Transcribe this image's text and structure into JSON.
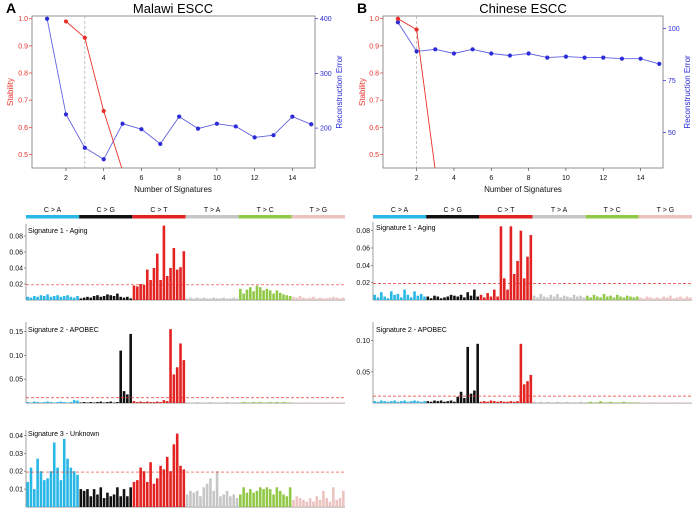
{
  "panels": [
    {
      "letter": "A",
      "title": "Malawi ESCC"
    },
    {
      "letter": "B",
      "title": "Chinese ESCC"
    }
  ],
  "colors": {
    "stability": "#e8302a",
    "error": "#2b2bd8",
    "C>A": "#29b7e6",
    "C>G": "#111111",
    "C>T": "#e32222",
    "T>A": "#c6c6c6",
    "T>C": "#92c847",
    "T>G": "#ecc3c0",
    "threshold": "#e8302a"
  },
  "chart_data": [
    {
      "type": "line",
      "title": "Malawi ESCC",
      "xlabel": "Number of Signatures",
      "ylabel": "Stability",
      "y2label": "Reconstruction Error",
      "xlim": [
        0.2,
        15.2
      ],
      "ylim": [
        0.45,
        1.01
      ],
      "y2lim": [
        127,
        405
      ],
      "xticks": [
        "2",
        "4",
        "6",
        "8",
        "10",
        "12",
        "14"
      ],
      "yticks": [
        "0.5",
        "0.6",
        "0.7",
        "0.8",
        "0.9",
        "1.0"
      ],
      "y2ticks": [
        "200",
        "300",
        "400"
      ],
      "selected_k": 3,
      "series": [
        {
          "name": "Stability",
          "x": [
            2,
            3,
            4,
            5
          ],
          "y": [
            0.99,
            0.93,
            0.66,
            0.44
          ]
        },
        {
          "name": "Reconstruction Error",
          "x": [
            1,
            2,
            3,
            4,
            5,
            6,
            7,
            8,
            9,
            10,
            11,
            12,
            13,
            14,
            15
          ],
          "y": [
            400,
            225,
            164,
            143,
            208,
            198,
            171,
            221,
            199,
            208,
            203,
            183,
            187,
            221,
            207
          ]
        }
      ]
    },
    {
      "type": "line",
      "title": "Chinese ESCC",
      "xlabel": "Number of Signatures",
      "ylabel": "Stability",
      "y2label": "Reconstruction Error",
      "xlim": [
        0.2,
        15.2
      ],
      "ylim": [
        0.45,
        1.01
      ],
      "y2lim": [
        33,
        106
      ],
      "xticks": [
        "2",
        "4",
        "6",
        "8",
        "10",
        "12",
        "14"
      ],
      "yticks": [
        "0.5",
        "0.6",
        "0.7",
        "0.8",
        "0.9",
        "1.0"
      ],
      "y2ticks": [
        "50",
        "75",
        "100"
      ],
      "selected_k": 2,
      "series": [
        {
          "name": "Stability",
          "x": [
            1,
            2,
            3
          ],
          "y": [
            1.0,
            0.96,
            0.44
          ]
        },
        {
          "name": "Reconstruction Error",
          "x": [
            1,
            2,
            3,
            4,
            5,
            6,
            7,
            8,
            9,
            10,
            11,
            12,
            13,
            14,
            15
          ],
          "y": [
            103,
            89,
            90,
            88,
            90,
            88,
            87,
            88,
            86,
            86.5,
            86,
            86,
            85.5,
            85.5,
            83
          ]
        }
      ]
    },
    {
      "type": "bar",
      "panel": "A",
      "title": "Signature 1 - Aging",
      "mutation_types": [
        "C > A",
        "C > G",
        "C > T",
        "T > A",
        "T > C",
        "T > G"
      ],
      "yticks": [
        "0.02",
        "0.04",
        "0.06",
        "0.08"
      ],
      "ylim": [
        0,
        0.095
      ],
      "threshold": 0.019,
      "values": [
        0.004,
        0.003,
        0.005,
        0.004,
        0.006,
        0.005,
        0.007,
        0.004,
        0.005,
        0.006,
        0.004,
        0.005,
        0.006,
        0.004,
        0.003,
        0.005,
        0.002,
        0.003,
        0.004,
        0.003,
        0.005,
        0.006,
        0.004,
        0.005,
        0.007,
        0.006,
        0.005,
        0.008,
        0.004,
        0.003,
        0.004,
        0.002,
        0.018,
        0.017,
        0.02,
        0.019,
        0.038,
        0.025,
        0.04,
        0.058,
        0.025,
        0.093,
        0.03,
        0.04,
        0.065,
        0.038,
        0.041,
        0.061,
        0.002,
        0.003,
        0.002,
        0.003,
        0.002,
        0.003,
        0.002,
        0.002,
        0.003,
        0.002,
        0.002,
        0.003,
        0.002,
        0.002,
        0.003,
        0.002,
        0.014,
        0.008,
        0.013,
        0.016,
        0.011,
        0.018,
        0.016,
        0.012,
        0.014,
        0.012,
        0.008,
        0.012,
        0.009,
        0.007,
        0.006,
        0.005,
        0.004,
        0.003,
        0.005,
        0.003,
        0.002,
        0.003,
        0.004,
        0.002,
        0.003,
        0.002,
        0.002,
        0.003,
        0.004,
        0.003,
        0.002,
        0.003
      ]
    },
    {
      "type": "bar",
      "panel": "A",
      "title": "Signature 2 - APOBEC",
      "yticks": [
        "0.05",
        "0.10",
        "0.15"
      ],
      "ylim": [
        0,
        0.17
      ],
      "threshold": 0.011,
      "values": [
        0.002,
        0.001,
        0.003,
        0.002,
        0.001,
        0.002,
        0.003,
        0.002,
        0.001,
        0.002,
        0.003,
        0.002,
        0.001,
        0.002,
        0.006,
        0.005,
        0.001,
        0.002,
        0.001,
        0.002,
        0.001,
        0.002,
        0.003,
        0.001,
        0.002,
        0.003,
        0.001,
        0.002,
        0.11,
        0.025,
        0.018,
        0.145,
        0.004,
        0.002,
        0.003,
        0.002,
        0.003,
        0.002,
        0.002,
        0.003,
        0.002,
        0.006,
        0.004,
        0.155,
        0.06,
        0.075,
        0.125,
        0.09,
        0.001,
        0.001,
        0.001,
        0.002,
        0.001,
        0.001,
        0.001,
        0.002,
        0.001,
        0.001,
        0.001,
        0.001,
        0.002,
        0.001,
        0.001,
        0.001,
        0.001,
        0.002,
        0.001,
        0.001,
        0.002,
        0.001,
        0.002,
        0.001,
        0.001,
        0.002,
        0.001,
        0.002,
        0.001,
        0.002,
        0.001,
        0.001,
        0.001,
        0.001,
        0.001,
        0.001,
        0.001,
        0.001,
        0.001,
        0.001,
        0.001,
        0.001,
        0.001,
        0.001,
        0.001,
        0.001,
        0.001,
        0.001
      ]
    },
    {
      "type": "bar",
      "panel": "A",
      "title": "Signature 3 - Unknown",
      "yticks": [
        "0.01",
        "0.02",
        "0.03",
        "0.04"
      ],
      "ylim": [
        0,
        0.043
      ],
      "threshold": 0.0195,
      "values": [
        0.014,
        0.022,
        0.01,
        0.027,
        0.02,
        0.015,
        0.016,
        0.02,
        0.036,
        0.022,
        0.015,
        0.038,
        0.027,
        0.022,
        0.02,
        0.018,
        0.01,
        0.009,
        0.01,
        0.006,
        0.01,
        0.007,
        0.011,
        0.005,
        0.008,
        0.006,
        0.007,
        0.011,
        0.006,
        0.01,
        0.006,
        0.011,
        0.014,
        0.015,
        0.022,
        0.02,
        0.014,
        0.025,
        0.013,
        0.016,
        0.023,
        0.021,
        0.028,
        0.02,
        0.035,
        0.041,
        0.023,
        0.021,
        0.007,
        0.009,
        0.008,
        0.009,
        0.006,
        0.011,
        0.013,
        0.016,
        0.009,
        0.02,
        0.006,
        0.007,
        0.009,
        0.006,
        0.007,
        0.005,
        0.007,
        0.011,
        0.008,
        0.01,
        0.008,
        0.009,
        0.011,
        0.01,
        0.011,
        0.01,
        0.007,
        0.011,
        0.009,
        0.007,
        0.006,
        0.011,
        0.004,
        0.006,
        0.005,
        0.004,
        0.003,
        0.005,
        0.003,
        0.006,
        0.004,
        0.009,
        0.005,
        0.003,
        0.011,
        0.004,
        0.005,
        0.009
      ]
    },
    {
      "type": "bar",
      "panel": "B",
      "title": "Signature 1 - Aging",
      "mutation_types": [
        "C > A",
        "C > G",
        "C > T",
        "T > A",
        "T > C",
        "T > G"
      ],
      "yticks": [
        "0.02",
        "0.04",
        "0.06",
        "0.08"
      ],
      "ylim": [
        0,
        0.09
      ],
      "threshold": 0.019,
      "values": [
        0.006,
        0.003,
        0.009,
        0.004,
        0.002,
        0.01,
        0.006,
        0.007,
        0.003,
        0.012,
        0.006,
        0.003,
        0.01,
        0.005,
        0.007,
        0.004,
        0.004,
        0.002,
        0.005,
        0.004,
        0.002,
        0.003,
        0.004,
        0.006,
        0.005,
        0.004,
        0.006,
        0.003,
        0.009,
        0.005,
        0.012,
        0.004,
        0.006,
        0.003,
        0.008,
        0.004,
        0.012,
        0.004,
        0.085,
        0.025,
        0.012,
        0.085,
        0.03,
        0.045,
        0.08,
        0.025,
        0.05,
        0.075,
        0.005,
        0.003,
        0.007,
        0.004,
        0.003,
        0.006,
        0.004,
        0.007,
        0.003,
        0.005,
        0.004,
        0.003,
        0.006,
        0.004,
        0.005,
        0.003,
        0.005,
        0.003,
        0.006,
        0.004,
        0.003,
        0.007,
        0.004,
        0.005,
        0.003,
        0.006,
        0.004,
        0.003,
        0.005,
        0.004,
        0.003,
        0.004,
        0.003,
        0.002,
        0.004,
        0.003,
        0.002,
        0.003,
        0.002,
        0.004,
        0.003,
        0.005,
        0.002,
        0.003,
        0.004,
        0.002,
        0.004,
        0.003
      ]
    },
    {
      "type": "bar",
      "panel": "B",
      "title": "Signature 2 - APOBEC",
      "yticks": [
        "0.05",
        "0.10"
      ],
      "ylim": [
        0,
        0.13
      ],
      "threshold": 0.011,
      "values": [
        0.003,
        0.002,
        0.004,
        0.003,
        0.002,
        0.003,
        0.004,
        0.002,
        0.003,
        0.004,
        0.002,
        0.003,
        0.004,
        0.003,
        0.002,
        0.003,
        0.003,
        0.002,
        0.004,
        0.003,
        0.004,
        0.002,
        0.003,
        0.004,
        0.002,
        0.01,
        0.018,
        0.008,
        0.09,
        0.015,
        0.02,
        0.095,
        0.002,
        0.003,
        0.002,
        0.004,
        0.003,
        0.002,
        0.003,
        0.002,
        0.002,
        0.003,
        0.002,
        0.003,
        0.095,
        0.03,
        0.035,
        0.045,
        0.002,
        0.001,
        0.002,
        0.001,
        0.002,
        0.001,
        0.001,
        0.002,
        0.001,
        0.001,
        0.002,
        0.001,
        0.001,
        0.001,
        0.002,
        0.001,
        0.001,
        0.002,
        0.001,
        0.001,
        0.003,
        0.001,
        0.001,
        0.002,
        0.001,
        0.001,
        0.001,
        0.002,
        0.001,
        0.001,
        0.001,
        0.001,
        0.001,
        0.001,
        0.001,
        0.001,
        0.001,
        0.001,
        0.001,
        0.001,
        0.001,
        0.001,
        0.001,
        0.001,
        0.001,
        0.001,
        0.001,
        0.001
      ]
    }
  ]
}
